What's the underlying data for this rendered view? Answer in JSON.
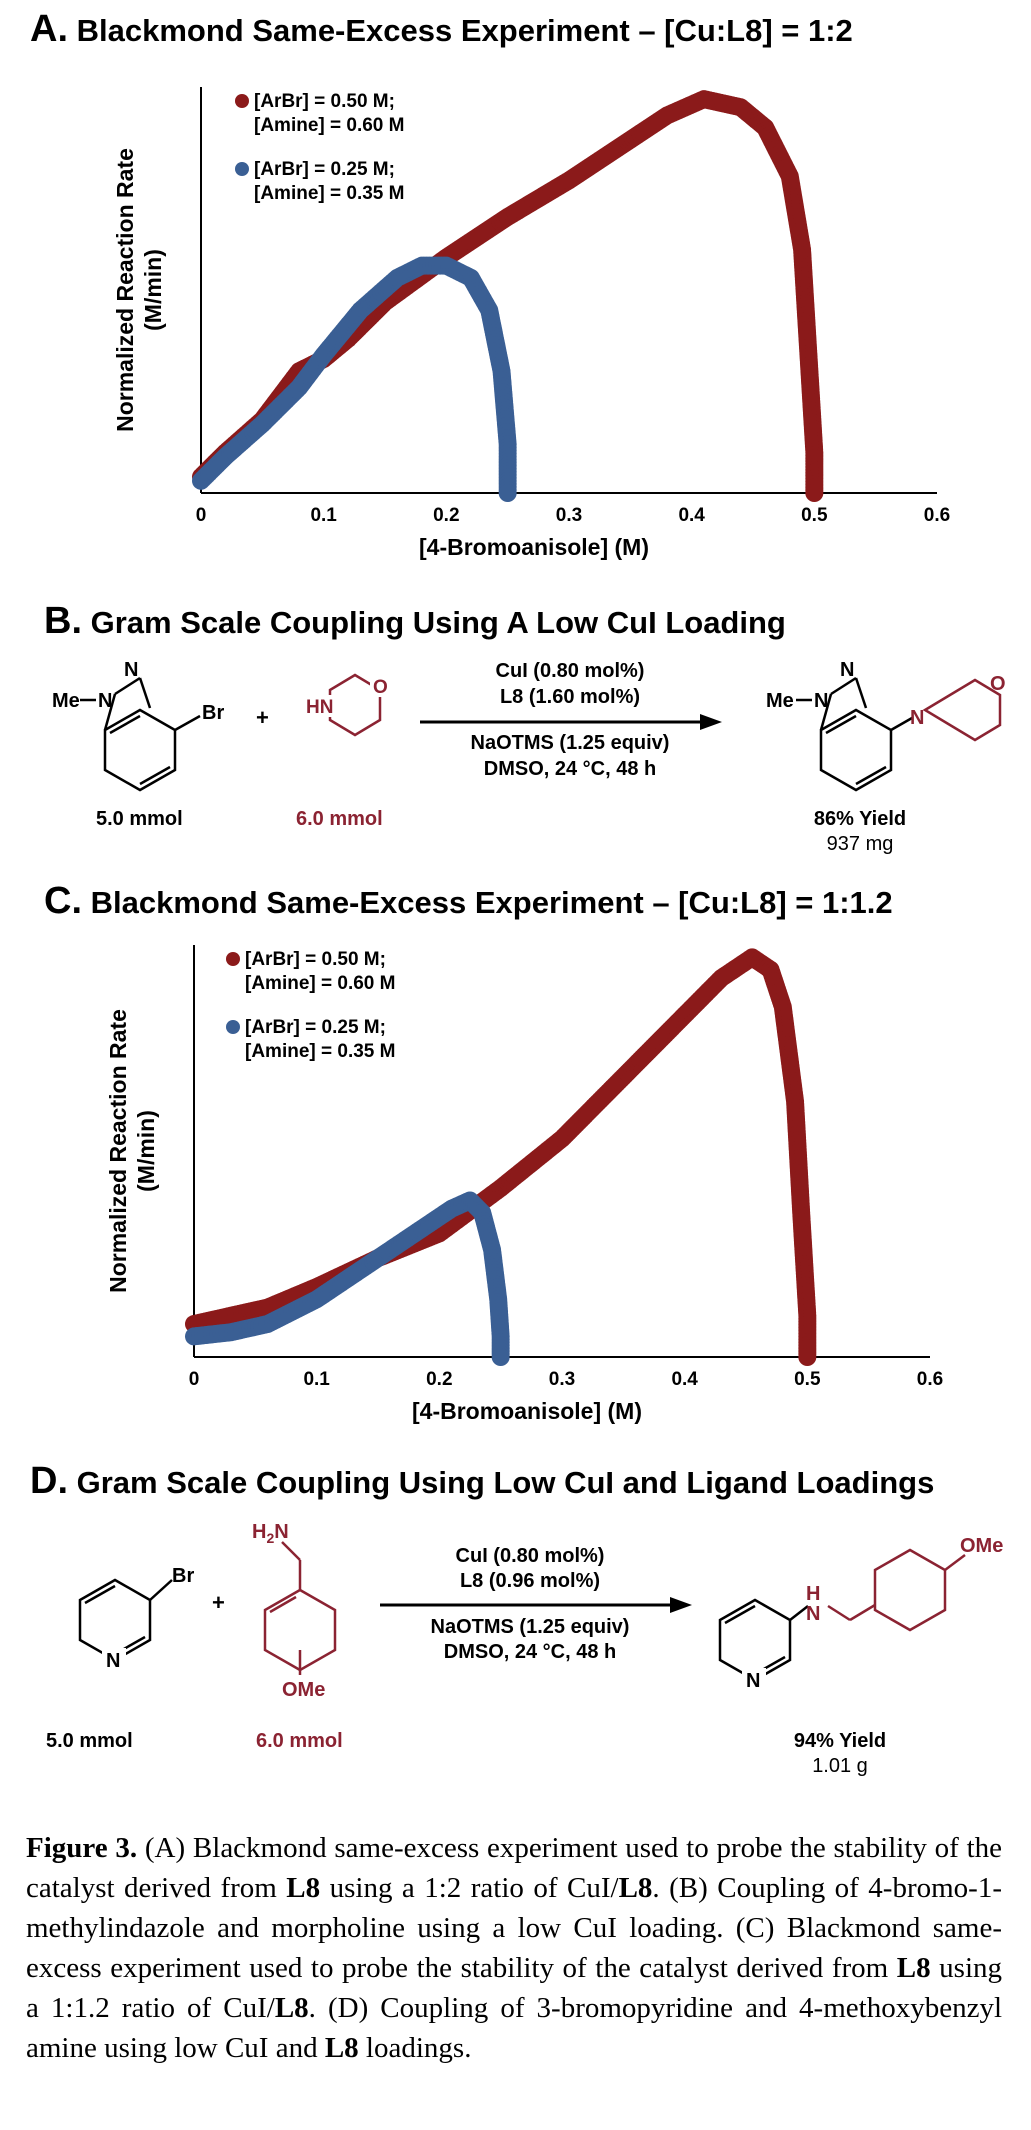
{
  "panel_a": {
    "letter": "A.",
    "title": "Blackmond Same-Excess Experiment – [Cu:L8] = 1:2"
  },
  "panel_b": {
    "letter": "B.",
    "title": "Gram Scale Coupling Using A Low CuI Loading",
    "reactant1_amount": "5.0 mmol",
    "reactant2_amount": "6.0 mmol",
    "reactant1_me": "Me",
    "reactant1_br": "Br",
    "plus": "+",
    "reagent_line1": "CuI (0.80 mol%)",
    "reagent_line2": "L8 (1.60 mol%)",
    "reagent_line3": "NaOTMS (1.25 equiv)",
    "reagent_line4": "DMSO, 24 °C, 48 h",
    "yield": "86% Yield",
    "mass": "937 mg"
  },
  "panel_c": {
    "letter": "C.",
    "title": "Blackmond Same-Excess Experiment – [Cu:L8] = 1:1.2"
  },
  "panel_d": {
    "letter": "D.",
    "title": "Gram Scale Coupling Using Low CuI and Ligand Loadings",
    "reactant1_amount": "5.0 mmol",
    "reactant2_amount": "6.0 mmol",
    "plus": "+",
    "reagent_line1": "CuI (0.80 mol%)",
    "reagent_line2": "L8 (0.96 mol%)",
    "reagent_line3": "NaOTMS (1.25 equiv)",
    "reagent_line4": "DMSO, 24 °C, 48 h",
    "yield": "94% Yield",
    "mass": "1.01 g"
  },
  "colors": {
    "red": "#8b1a1a",
    "blue": "#3a5f94",
    "mol_red": "#8b2332"
  },
  "chart_data": [
    {
      "type": "scatter",
      "title": "Blackmond Same-Excess Experiment – [Cu:L8] = 1:2",
      "xlabel": "[4-Bromoanisole] (M)",
      "ylabel_line1": "Normalized Reaction Rate",
      "ylabel_line2": "(M/min)",
      "xlim": [
        0,
        0.6
      ],
      "ylim": [
        0,
        1
      ],
      "xticks": [
        "0",
        "0.1",
        "0.2",
        "0.3",
        "0.4",
        "0.5",
        "0.6"
      ],
      "series": [
        {
          "name_line1": "[ArBr] = 0.50 M;",
          "name_line2": "[Amine] = 0.60 M",
          "color": "#8b1a1a",
          "x": [
            0,
            0.02,
            0.05,
            0.08,
            0.1,
            0.12,
            0.15,
            0.2,
            0.25,
            0.3,
            0.35,
            0.38,
            0.41,
            0.44,
            0.46,
            0.48,
            0.49,
            0.495,
            0.5,
            0.5
          ],
          "y": [
            0.04,
            0.1,
            0.18,
            0.3,
            0.33,
            0.38,
            0.47,
            0.58,
            0.68,
            0.77,
            0.87,
            0.93,
            0.97,
            0.95,
            0.9,
            0.78,
            0.6,
            0.35,
            0.1,
            0.0
          ]
        },
        {
          "name_line1": "[ArBr] = 0.25 M;",
          "name_line2": "[Amine] = 0.35 M",
          "color": "#3a5f94",
          "x": [
            0,
            0.02,
            0.05,
            0.08,
            0.1,
            0.13,
            0.16,
            0.18,
            0.2,
            0.22,
            0.235,
            0.245,
            0.25,
            0.25
          ],
          "y": [
            0.03,
            0.09,
            0.17,
            0.26,
            0.34,
            0.45,
            0.53,
            0.56,
            0.56,
            0.53,
            0.45,
            0.3,
            0.12,
            0.0
          ]
        }
      ]
    },
    {
      "type": "scatter",
      "title": "Blackmond Same-Excess Experiment – [Cu:L8] = 1:1.2",
      "xlabel": "[4-Bromoanisole] (M)",
      "ylabel_line1": "Normalized Reaction Rate",
      "ylabel_line2": "(M/min)",
      "xlim": [
        0,
        0.6
      ],
      "ylim": [
        0,
        1
      ],
      "xticks": [
        "0",
        "0.1",
        "0.2",
        "0.3",
        "0.4",
        "0.5",
        "0.6"
      ],
      "series": [
        {
          "name_line1": "[ArBr] = 0.50 M;",
          "name_line2": "[Amine] = 0.60 M",
          "color": "#8b1a1a",
          "x": [
            0,
            0.03,
            0.06,
            0.1,
            0.15,
            0.2,
            0.25,
            0.3,
            0.35,
            0.4,
            0.43,
            0.455,
            0.47,
            0.48,
            0.49,
            0.495,
            0.5,
            0.5
          ],
          "y": [
            0.08,
            0.1,
            0.12,
            0.17,
            0.24,
            0.3,
            0.41,
            0.53,
            0.68,
            0.83,
            0.92,
            0.97,
            0.94,
            0.85,
            0.62,
            0.35,
            0.1,
            0.0
          ]
        },
        {
          "name_line1": "[ArBr] = 0.25 M;",
          "name_line2": "[Amine] = 0.35 M",
          "color": "#3a5f94",
          "x": [
            0,
            0.03,
            0.06,
            0.1,
            0.14,
            0.18,
            0.21,
            0.225,
            0.235,
            0.243,
            0.248,
            0.25,
            0.25
          ],
          "y": [
            0.05,
            0.06,
            0.08,
            0.14,
            0.22,
            0.3,
            0.36,
            0.38,
            0.35,
            0.26,
            0.14,
            0.05,
            0.0
          ]
        }
      ]
    }
  ],
  "caption": {
    "label": "Figure 3.",
    "p1": " (A) Blackmond same-excess experiment used to probe the stability of the catalyst derived from ",
    "l8a": "L8",
    "p2": " using a 1:2 ratio of CuI/",
    "l8b": "L8",
    "p3": ". (B) Coupling of 4-bromo-1-methylindazole and morpholine using a low CuI loading. (C) Blackmond same-excess experiment used to probe the stability of the catalyst derived from ",
    "l8c": "L8",
    "p4": " using a 1:1.2 ratio of CuI/",
    "l8d": "L8",
    "p5": ". (D) Coupling of 3-bromopyridine and 4-methoxybenzyl amine using low CuI and ",
    "l8e": "L8",
    "p6": " loadings."
  }
}
